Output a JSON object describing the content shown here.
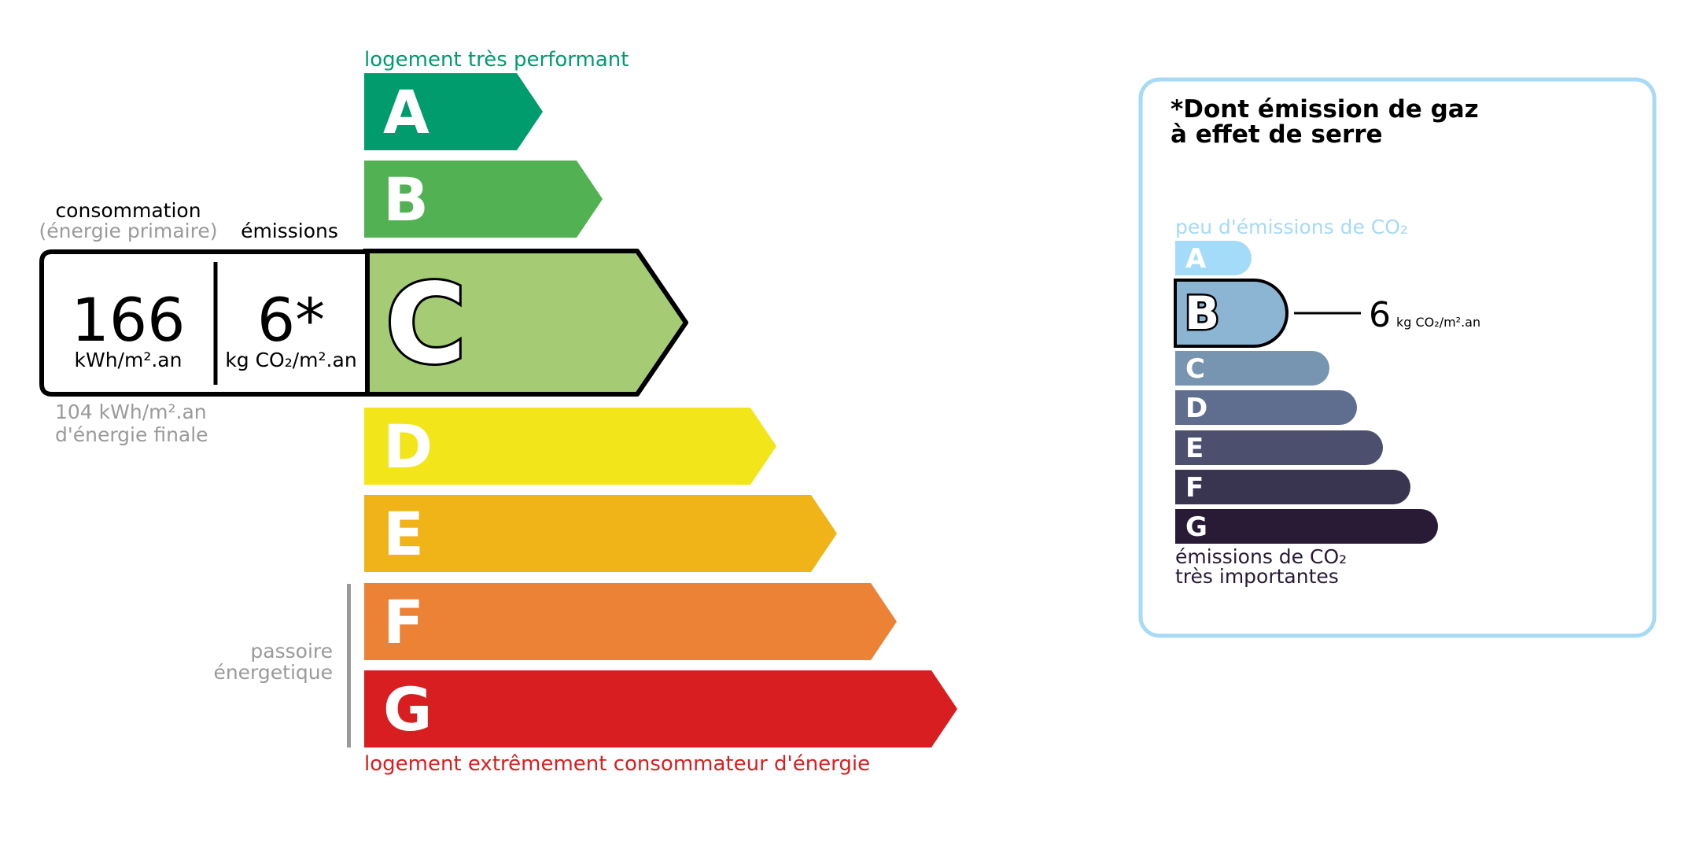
{
  "energy": {
    "top_label": "logement très performant",
    "bottom_label": "logement extrêmement consommateur d'énergie",
    "top_label_color": "#009c6d",
    "bottom_label_color": "#d81e20",
    "classes": [
      {
        "letter": "A",
        "color": "#009c6d"
      },
      {
        "letter": "B",
        "color": "#52b153"
      },
      {
        "letter": "C",
        "color": "#a5cc74"
      },
      {
        "letter": "D",
        "color": "#f2e61b"
      },
      {
        "letter": "E",
        "color": "#f0b418"
      },
      {
        "letter": "F",
        "color": "#eb8235"
      },
      {
        "letter": "G",
        "color": "#d81e20"
      }
    ],
    "selected_class": "C",
    "consumption_heading": "consommation",
    "consumption_subheading": "(énergie primaire)",
    "emissions_heading": "émissions",
    "consumption_value": "166",
    "consumption_unit": "kWh/m².an",
    "emissions_value": "6*",
    "emissions_unit": "kg CO₂/m².an",
    "final_energy_line1": "104 kWh/m².an",
    "final_energy_line2": "d'énergie finale",
    "passoire_line1": "passoire",
    "passoire_line2": "énergetique"
  },
  "ghg": {
    "title_line1": "*Dont émission de gaz",
    "title_line2": "à effet de serre",
    "top_label": "peu d'émissions de CO₂",
    "bottom_label_line1": "émissions de CO₂",
    "bottom_label_line2": "très importantes",
    "border_color": "#a6daf5",
    "classes": [
      {
        "letter": "A",
        "color": "#a4dbf8"
      },
      {
        "letter": "B",
        "color": "#8cb4d3"
      },
      {
        "letter": "C",
        "color": "#7794b1"
      },
      {
        "letter": "D",
        "color": "#5f6e8f"
      },
      {
        "letter": "E",
        "color": "#4c4f6d"
      },
      {
        "letter": "F",
        "color": "#393551"
      },
      {
        "letter": "G",
        "color": "#291b35"
      }
    ],
    "selected_class": "B",
    "value": "6",
    "unit": "kg CO₂/m².an"
  }
}
